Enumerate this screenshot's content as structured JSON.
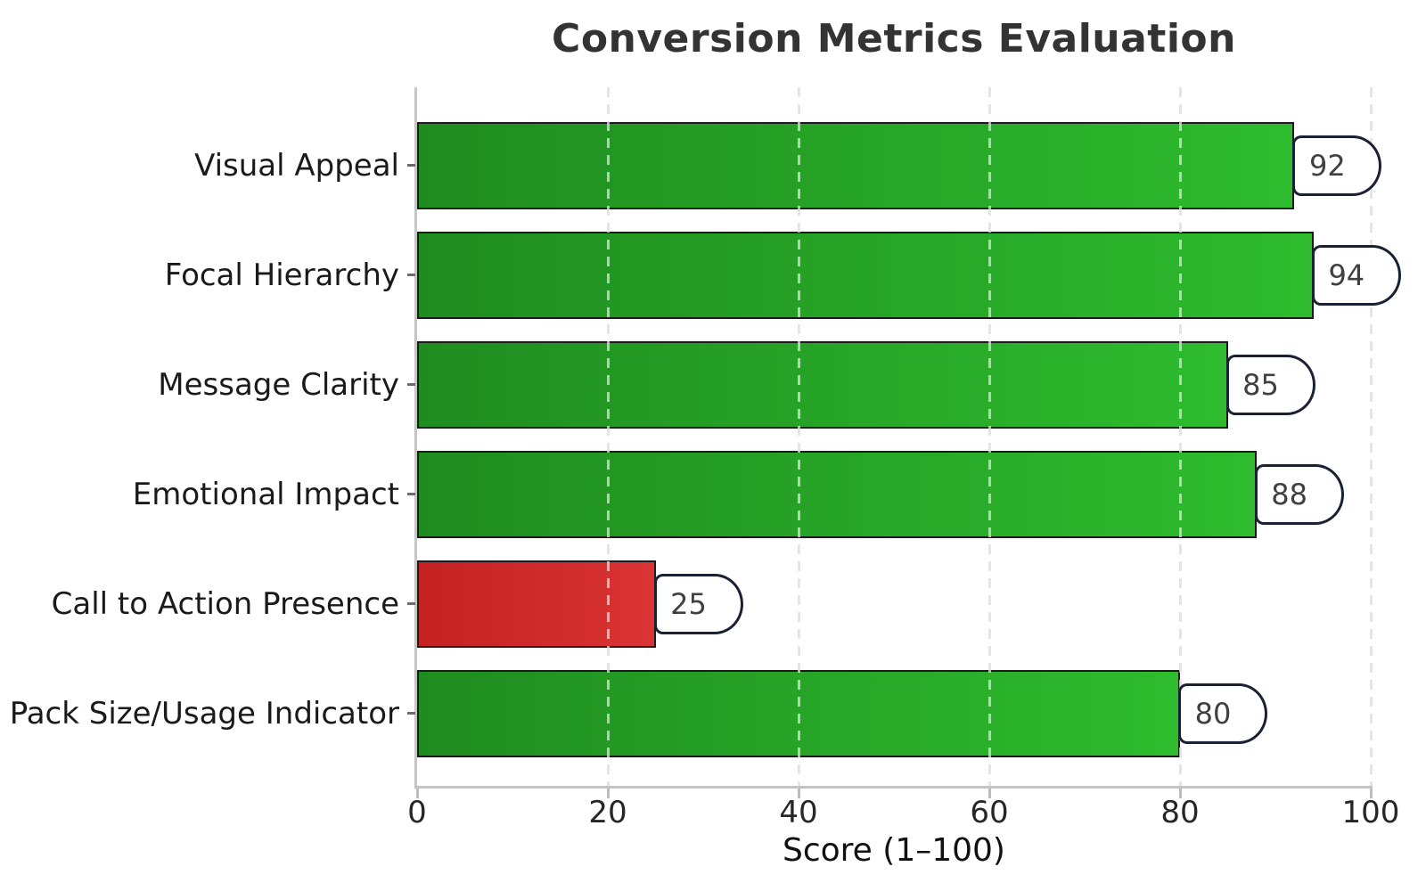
{
  "chart_data": {
    "type": "bar",
    "orientation": "horizontal",
    "title": "Conversion Metrics Evaluation",
    "xlabel": "Score (1–100)",
    "xlim": [
      0,
      100
    ],
    "xticks": [
      0,
      20,
      40,
      60,
      80,
      100
    ],
    "grid": "vertical-dashed",
    "legend": "none",
    "categories": [
      "Visual Appeal",
      "Focal Hierarchy",
      "Message Clarity",
      "Emotional Impact",
      "Call to Action Presence",
      "Pack Size/Usage Indicator"
    ],
    "values": [
      92,
      94,
      85,
      88,
      25,
      80
    ],
    "value_labels": [
      "92",
      "94",
      "85",
      "88",
      "25",
      "80"
    ],
    "bar_color_keys": [
      "green",
      "green",
      "green",
      "green",
      "red",
      "green"
    ],
    "colors": {
      "green_start": "#1f8c1f",
      "green_end": "#2ebc2e",
      "red_start": "#c42121",
      "red_end": "#da3434",
      "bar_edge": "#1b1b1b",
      "callout_border": "#1b2134",
      "callout_bg": "#ffffff",
      "grid": "#dedede",
      "spine": "#c4c4c4",
      "title_text": "#333333",
      "label_text": "#1a1a1a"
    }
  }
}
